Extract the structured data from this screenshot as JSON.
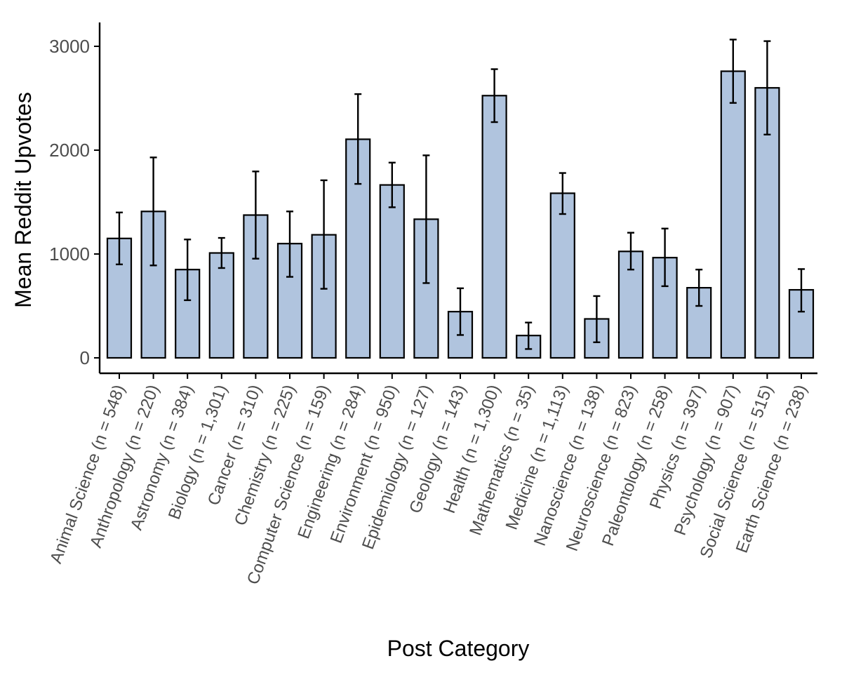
{
  "chart_data": {
    "type": "bar",
    "xlabel": "Post Category",
    "ylabel": "Mean Reddit Upvotes",
    "ylim": [
      -150,
      3200
    ],
    "yticks": [
      0,
      1000,
      2000,
      3000
    ],
    "grid": false,
    "legend": "none",
    "bar_color": "#b0c4de",
    "categories": [
      "Animal Science (n = 548)",
      "Anthropology (n = 220)",
      "Astronomy (n = 384)",
      "Biology (n = 1,301)",
      "Cancer (n = 310)",
      "Chemistry (n = 225)",
      "Computer Science (n = 159)",
      "Engineering (n = 284)",
      "Environment (n = 950)",
      "Epidemiology (n = 127)",
      "Geology (n = 143)",
      "Health (n = 1,300)",
      "Mathematics (n = 35)",
      "Medicine (n = 1,113)",
      "Nanoscience (n = 138)",
      "Neuroscience (n = 823)",
      "Paleontology (n = 258)",
      "Physics (n = 397)",
      "Psychology (n = 907)",
      "Social Science (n = 515)",
      "Earth Science (n = 238)"
    ],
    "values": [
      1150,
      1410,
      850,
      1010,
      1375,
      1100,
      1185,
      2105,
      1665,
      1335,
      445,
      2525,
      215,
      1585,
      375,
      1025,
      965,
      675,
      2760,
      2600,
      655
    ],
    "error_low": [
      900,
      890,
      555,
      865,
      955,
      780,
      665,
      1675,
      1450,
      720,
      220,
      2270,
      85,
      1385,
      150,
      850,
      690,
      500,
      2455,
      2150,
      445
    ],
    "error_high": [
      1400,
      1930,
      1140,
      1155,
      1795,
      1410,
      1710,
      2540,
      1880,
      1950,
      670,
      2780,
      340,
      1780,
      595,
      1205,
      1245,
      850,
      3065,
      3050,
      855
    ]
  }
}
